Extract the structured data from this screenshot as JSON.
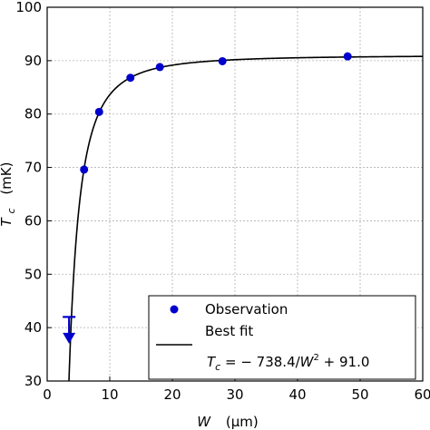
{
  "chart_data": {
    "type": "scatter",
    "xlabel_symbol": "W",
    "xlabel_unit": "(μm)",
    "ylabel_symbol": "T",
    "ylabel_sub": "c",
    "ylabel_unit": "(mK)",
    "xlim": [
      0,
      60
    ],
    "ylim": [
      30,
      100
    ],
    "xticks": [
      0,
      10,
      20,
      30,
      40,
      50,
      60
    ],
    "yticks": [
      30,
      40,
      50,
      60,
      70,
      80,
      90,
      100
    ],
    "grid": true,
    "legend_position": "bottom-right",
    "series": [
      {
        "name": "Observation",
        "kind": "scatter",
        "color": "#0000cc",
        "points": [
          {
            "x": 5.9,
            "y": 69.6
          },
          {
            "x": 8.3,
            "y": 80.4
          },
          {
            "x": 13.3,
            "y": 86.8
          },
          {
            "x": 18.0,
            "y": 88.8
          },
          {
            "x": 28.0,
            "y": 89.9
          },
          {
            "x": 48.0,
            "y": 90.8
          }
        ],
        "upper_limit": {
          "x": 3.5,
          "y_top": 42.0,
          "y_bottom": 38.0
        }
      },
      {
        "name": "Best fit",
        "kind": "line",
        "color": "#000000",
        "fit": {
          "a": -738.4,
          "b": 91.0
        }
      }
    ],
    "fit_equation": {
      "lhs": "T",
      "lhs_sub": "c",
      "rhs_prefix": " = − 738.4/",
      "rhs_var": "W",
      "rhs_exp": "2",
      "rhs_suffix": " + 91.0"
    }
  }
}
